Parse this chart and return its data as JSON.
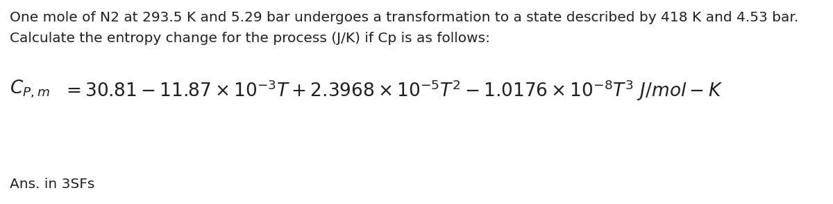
{
  "line1": "One mole of N2 at 293.5 K and 5.29 bar undergoes a transformation to a state described by 418 K and 4.53 bar.",
  "line2": "Calculate the entropy change for the process (J/K) if Cp is as follows:",
  "cp_label": "$C_{P,m}$",
  "cp_equation": "$=30.81-11.87\\times10^{-3}T+2.3968\\times10^{-5}T^{2}-1.0176\\times10^{-8}T^{3}\\ J/mol-K$",
  "ans_line": "Ans. in 3SFs",
  "bg_color": "#ffffff",
  "text_color": "#231f20",
  "font_size_body": 14.5,
  "font_size_eq": 19.0,
  "font_size_ans": 14.5,
  "fig_width": 12.0,
  "fig_height": 2.95,
  "dpi": 100
}
